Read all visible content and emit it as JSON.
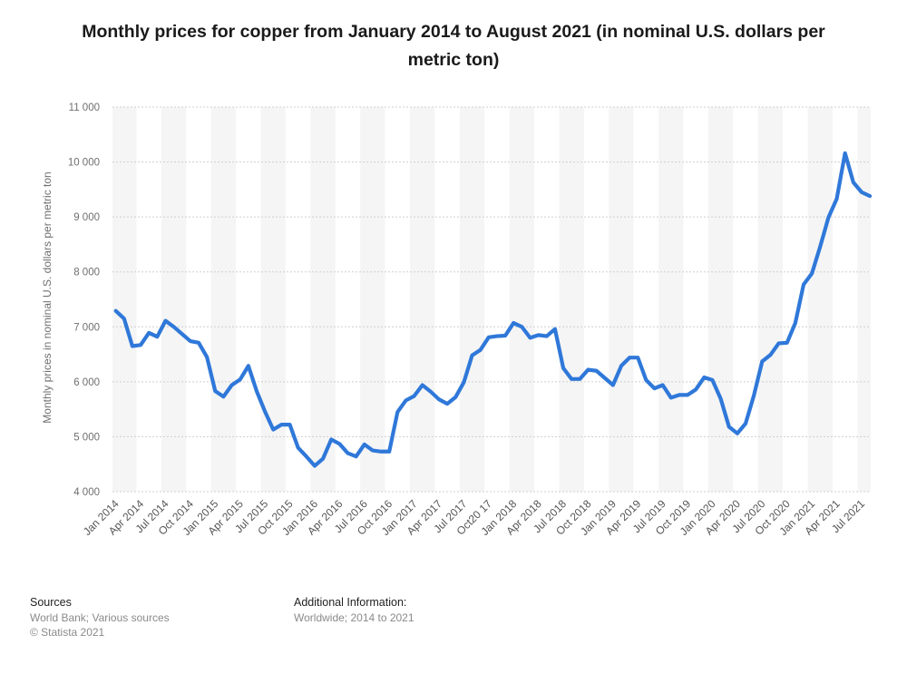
{
  "title": "Monthly prices for copper from January 2014 to August 2021 (in nominal U.S. dollars per metric ton)",
  "footer": {
    "sources_heading": "Sources",
    "sources_line1": "World Bank; Various sources",
    "sources_line2": "© Statista 2021",
    "info_heading": "Additional Information:",
    "info_line1": "Worldwide; 2014 to 2021"
  },
  "chart_data": {
    "type": "line",
    "title": "Monthly prices for copper from January 2014 to August 2021 (in nominal U.S. dollars per metric ton)",
    "xlabel": "",
    "ylabel": "Monthly prices in nominal U.S. dollars per metric ton",
    "ylim": [
      4000,
      11000
    ],
    "yticks": [
      4000,
      5000,
      6000,
      7000,
      8000,
      9000,
      10000,
      11000
    ],
    "ytick_labels": [
      "4 000",
      "5 000",
      "6 000",
      "7 000",
      "8 000",
      "9 000",
      "10 000",
      "11 000"
    ],
    "x_tick_labels": [
      "Jan 2014",
      "Apr 2014",
      "Jul 2014",
      "Oct 2014",
      "Jan 2015",
      "Apr 2015",
      "Jul 2015",
      "Oct 2015",
      "Jan 2016",
      "Apr 2016",
      "Jul 2016",
      "Oct 2016",
      "Jan 2017",
      "Apr 2017",
      "Jul 2017",
      "Oct20 17",
      "Jan 2018",
      "Apr 2018",
      "Jul 2018",
      "Oct 2018",
      "Jan 2019",
      "Apr 2019",
      "Jul 2019",
      "Oct 2019",
      "Jan 2020",
      "Apr 2020",
      "Jul 2020",
      "Oct 2020",
      "Jan 2021",
      "Apr 2021",
      "Jul 2021"
    ],
    "grid": true,
    "line_color": "#2f78d9",
    "series": [
      {
        "values": [
          7290,
          7150,
          6650,
          6670,
          6890,
          6820,
          7110,
          7000,
          6870,
          6740,
          6710,
          6450,
          5830,
          5730,
          5940,
          6040,
          6290,
          5830,
          5460,
          5130,
          5220,
          5220,
          4800,
          4640,
          4470,
          4600,
          4950,
          4870,
          4700,
          4640,
          4860,
          4750,
          4730,
          4730,
          5450,
          5660,
          5740,
          5940,
          5820,
          5680,
          5600,
          5720,
          5990,
          6480,
          6580,
          6810,
          6830,
          6840,
          7070,
          7000,
          6800,
          6850,
          6830,
          6960,
          6250,
          6050,
          6050,
          6220,
          6200,
          6070,
          5940,
          6290,
          6440,
          6440,
          6030,
          5880,
          5940,
          5710,
          5760,
          5760,
          5860,
          6080,
          6030,
          5690,
          5180,
          5060,
          5240,
          5750,
          6370,
          6490,
          6700,
          6710,
          7070,
          7770,
          7970,
          8460,
          8990,
          9330,
          10160,
          9630,
          9450,
          9380
        ]
      }
    ]
  }
}
